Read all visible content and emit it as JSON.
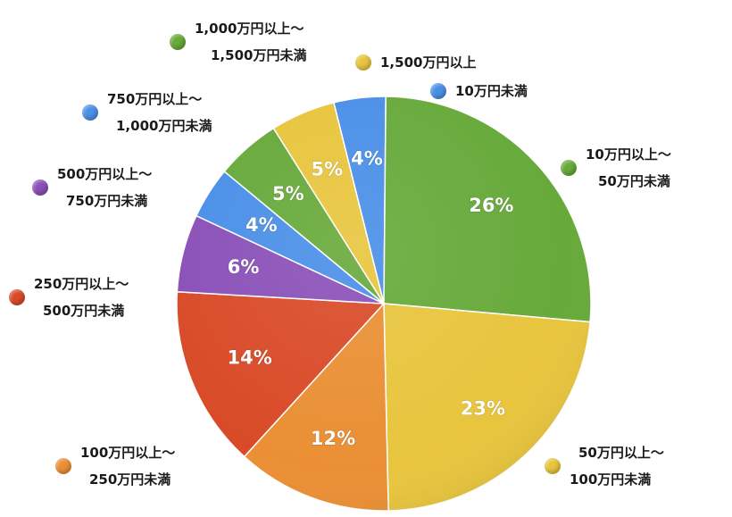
{
  "chart_data": {
    "type": "pie",
    "slices": [
      {
        "label_line1": "10万円未満",
        "label_line2": "",
        "value": 4,
        "value_label": "4%",
        "color": "#4a8fe7",
        "label_color": "#ffffff"
      },
      {
        "label_line1": "10万円以上〜",
        "label_line2": "50万円未満",
        "value": 26,
        "value_label": "26%",
        "color": "#67a93a",
        "label_color": "#ffffff"
      },
      {
        "label_line1": "50万円以上〜",
        "label_line2": "100万円未満",
        "value": 23,
        "value_label": "23%",
        "color": "#e8c53d",
        "label_color": "#ffffff"
      },
      {
        "label_line1": "100万円以上〜",
        "label_line2": "250万円未満",
        "value": 12,
        "value_label": "12%",
        "color": "#ea8f34",
        "label_color": "#ffffff"
      },
      {
        "label_line1": "250万円以上〜",
        "label_line2": "500万円未満",
        "value": 14,
        "value_label": "14%",
        "color": "#d94a28",
        "label_color": "#ffffff"
      },
      {
        "label_line1": "500万円以上〜",
        "label_line2": "750万円未満",
        "value": 6,
        "value_label": "6%",
        "color": "#8a50b8",
        "label_color": "#ffffff"
      },
      {
        "label_line1": "750万円以上〜",
        "label_line2": "1,000万円未満",
        "value": 4,
        "value_label": "4%",
        "color": "#4a8fe7",
        "label_color": "#ffffff"
      },
      {
        "label_line1": "1,000万円以上〜",
        "label_line2": "1,500万円未満",
        "value": 5,
        "value_label": "5%",
        "color": "#67a93a",
        "label_color": "#ffffff"
      },
      {
        "label_line1": "1,500万円以上",
        "label_line2": "",
        "value": 5,
        "value_label": "5%",
        "color": "#e8c53d",
        "label_color": "#ffffff"
      }
    ]
  }
}
